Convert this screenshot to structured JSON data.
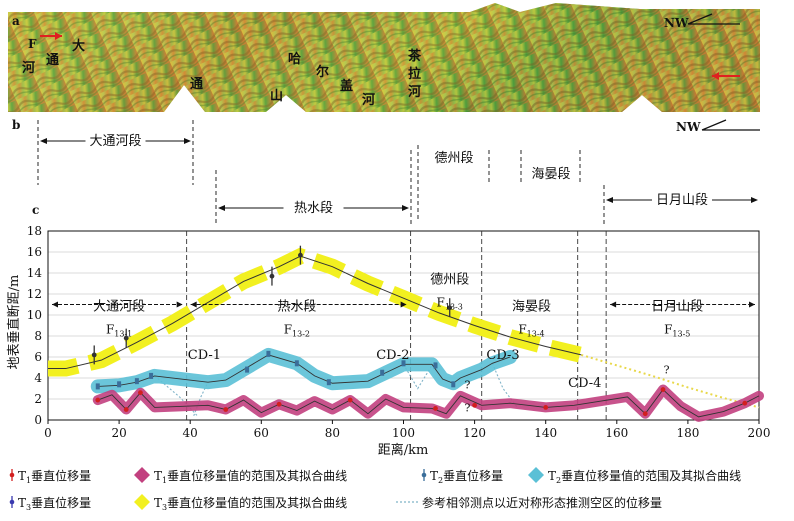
{
  "panels": {
    "a": {
      "letter": "a",
      "north_label": "NW",
      "fault_label": "F",
      "place_chars": [
        "大",
        "通",
        "河",
        "通",
        "山",
        "哈",
        "尔",
        "盖",
        "茶",
        "拉",
        "河",
        "河"
      ]
    },
    "b": {
      "letter": "b",
      "north_label": "NW"
    },
    "c": {
      "letter": "c"
    }
  },
  "colors": {
    "t1": "#c2407f",
    "t1_point": "#d21f1f",
    "t2": "#5bc0d6",
    "t2_point": "#3a6e9a",
    "t3": "#f2f020",
    "t3_point": "#333333",
    "curve": "#333333",
    "dashed_ref": "#7fb3c8"
  },
  "segments": [
    {
      "id": "datong",
      "label": "大通河段",
      "fault": "F",
      "sub": "13-1"
    },
    {
      "id": "reshui",
      "label": "热水段",
      "fault": "F",
      "sub": "13-2"
    },
    {
      "id": "dezhou",
      "label": "德州段",
      "fault": "F",
      "sub": "13-3"
    },
    {
      "id": "haiyan",
      "label": "海晏段",
      "fault": "F",
      "sub": "13-4"
    },
    {
      "id": "riyue",
      "label": "日月山段",
      "fault": "F",
      "sub": "13-5"
    }
  ],
  "boundaries": [
    "CD-1",
    "CD-2",
    "CD-3",
    "CD-4"
  ],
  "question_mark": "?",
  "legend": [
    {
      "id": "t1p",
      "sym": "T",
      "sub": "1",
      "text": "垂直位移量"
    },
    {
      "id": "t1r",
      "sym": "T",
      "sub": "1",
      "text": "垂直位移量值的范围及其拟合曲线"
    },
    {
      "id": "t2p",
      "sym": "T",
      "sub": "2",
      "text": "垂直位移量"
    },
    {
      "id": "t2r",
      "sym": "T",
      "sub": "2",
      "text": "垂直位移量值的范围及其拟合曲线"
    },
    {
      "id": "t3p",
      "sym": "T",
      "sub": "3",
      "text": "垂直位移量"
    },
    {
      "id": "t3r",
      "sym": "T",
      "sub": "3",
      "text": "垂直位移量值的范围及其拟合曲线"
    },
    {
      "id": "ref",
      "sym": "",
      "sub": "",
      "text": "参考相邻测点以近对称形态推测空区的位移量"
    }
  ],
  "chart_data": {
    "type": "line",
    "xlabel": "距离/km",
    "ylabel": "地表垂直断距/m",
    "xlim": [
      0,
      200
    ],
    "ylim": [
      0,
      18
    ],
    "xticks": [
      0,
      20,
      40,
      60,
      80,
      100,
      120,
      140,
      160,
      180,
      200
    ],
    "yticks": [
      0,
      2,
      4,
      6,
      8,
      10,
      12,
      14,
      16,
      18
    ],
    "segment_boundaries_km": [
      39,
      102,
      122,
      149,
      157
    ],
    "series": [
      {
        "name": "T3",
        "x": [
          0,
          5,
          15,
          25,
          35,
          45,
          55,
          65,
          71,
          80,
          90,
          100,
          110,
          120,
          130,
          140,
          150,
          160,
          170,
          180,
          190,
          200
        ],
        "y": [
          4.9,
          4.9,
          5.7,
          7.4,
          9.2,
          11.2,
          13.2,
          14.6,
          15.6,
          14.6,
          13.0,
          11.6,
          10.2,
          9.0,
          7.9,
          7.0,
          6.2,
          5.2,
          4.2,
          3.1,
          2.1,
          1.2
        ],
        "points": [
          {
            "x": 13,
            "y": 6.2
          },
          {
            "x": 22,
            "y": 7.8
          },
          {
            "x": 63,
            "y": 13.7
          },
          {
            "x": 71,
            "y": 15.7
          },
          {
            "x": 113,
            "y": 10.7
          }
        ]
      },
      {
        "name": "T2",
        "x": [
          14,
          20,
          25,
          30,
          45,
          50,
          55,
          62,
          70,
          75,
          80,
          90,
          95,
          100,
          108,
          111,
          114,
          116,
          122,
          125,
          130
        ],
        "y": [
          3.2,
          3.3,
          3.6,
          4.2,
          3.6,
          3.8,
          4.8,
          6.2,
          5.4,
          4.2,
          3.5,
          3.7,
          4.5,
          5.3,
          5.3,
          3.9,
          3.5,
          4.0,
          4.8,
          5.4,
          6.0
        ],
        "points": [
          {
            "x": 14,
            "y": 3.2
          },
          {
            "x": 20,
            "y": 3.4
          },
          {
            "x": 25,
            "y": 3.7
          },
          {
            "x": 29,
            "y": 4.2
          },
          {
            "x": 56,
            "y": 4.8
          },
          {
            "x": 62,
            "y": 6.3
          },
          {
            "x": 70,
            "y": 5.4
          },
          {
            "x": 79,
            "y": 3.6
          },
          {
            "x": 94,
            "y": 4.5
          },
          {
            "x": 100,
            "y": 5.4
          },
          {
            "x": 109,
            "y": 5.2
          },
          {
            "x": 114,
            "y": 3.4
          }
        ]
      },
      {
        "name": "T1",
        "x": [
          14,
          18,
          22,
          26,
          30,
          45,
          50,
          55,
          60,
          65,
          70,
          75,
          80,
          85,
          90,
          95,
          100,
          108,
          112,
          116,
          122,
          130,
          140,
          148,
          163,
          168,
          173,
          178,
          183,
          190,
          196,
          200
        ],
        "y": [
          1.9,
          2.4,
          1.0,
          2.6,
          1.2,
          1.4,
          1.0,
          1.9,
          0.7,
          1.5,
          0.9,
          1.8,
          1.0,
          1.9,
          0.6,
          2.0,
          1.2,
          1.1,
          0.6,
          2.3,
          1.4,
          1.6,
          1.2,
          1.4,
          2.2,
          0.6,
          2.9,
          1.3,
          0.3,
          0.8,
          1.6,
          2.3
        ],
        "points": [
          {
            "x": 14,
            "y": 1.9
          },
          {
            "x": 22,
            "y": 1.0
          },
          {
            "x": 26,
            "y": 2.6
          },
          {
            "x": 50,
            "y": 1.0
          },
          {
            "x": 65,
            "y": 1.5
          },
          {
            "x": 85,
            "y": 1.9
          },
          {
            "x": 109,
            "y": 1.1
          },
          {
            "x": 120,
            "y": 1.4
          },
          {
            "x": 140,
            "y": 1.2
          },
          {
            "x": 168,
            "y": 0.6
          },
          {
            "x": 173,
            "y": 2.9
          },
          {
            "x": 196,
            "y": 1.6
          }
        ]
      }
    ]
  }
}
